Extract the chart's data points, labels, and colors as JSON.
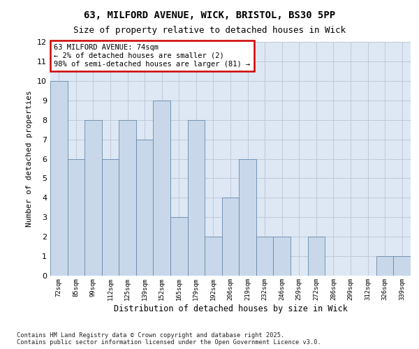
{
  "title1": "63, MILFORD AVENUE, WICK, BRISTOL, BS30 5PP",
  "title2": "Size of property relative to detached houses in Wick",
  "xlabel": "Distribution of detached houses by size in Wick",
  "ylabel": "Number of detached properties",
  "categories": [
    "72sqm",
    "85sqm",
    "99sqm",
    "112sqm",
    "125sqm",
    "139sqm",
    "152sqm",
    "165sqm",
    "179sqm",
    "192sqm",
    "206sqm",
    "219sqm",
    "232sqm",
    "246sqm",
    "259sqm",
    "272sqm",
    "286sqm",
    "299sqm",
    "312sqm",
    "326sqm",
    "339sqm"
  ],
  "values": [
    10,
    6,
    8,
    6,
    8,
    7,
    9,
    3,
    8,
    2,
    4,
    6,
    2,
    2,
    0,
    2,
    0,
    0,
    0,
    1,
    1
  ],
  "bar_color": "#c8d8ea",
  "bar_edge_color": "#6688aa",
  "annotation_text": "63 MILFORD AVENUE: 74sqm\n← 2% of detached houses are smaller (2)\n98% of semi-detached houses are larger (81) →",
  "annotation_box_edge": "#cc0000",
  "ylim": [
    0,
    12
  ],
  "yticks": [
    0,
    1,
    2,
    3,
    4,
    5,
    6,
    7,
    8,
    9,
    10,
    11,
    12
  ],
  "grid_color": "#c0c8d8",
  "bg_color": "#dde8f4",
  "footer": "Contains HM Land Registry data © Crown copyright and database right 2025.\nContains public sector information licensed under the Open Government Licence v3.0."
}
